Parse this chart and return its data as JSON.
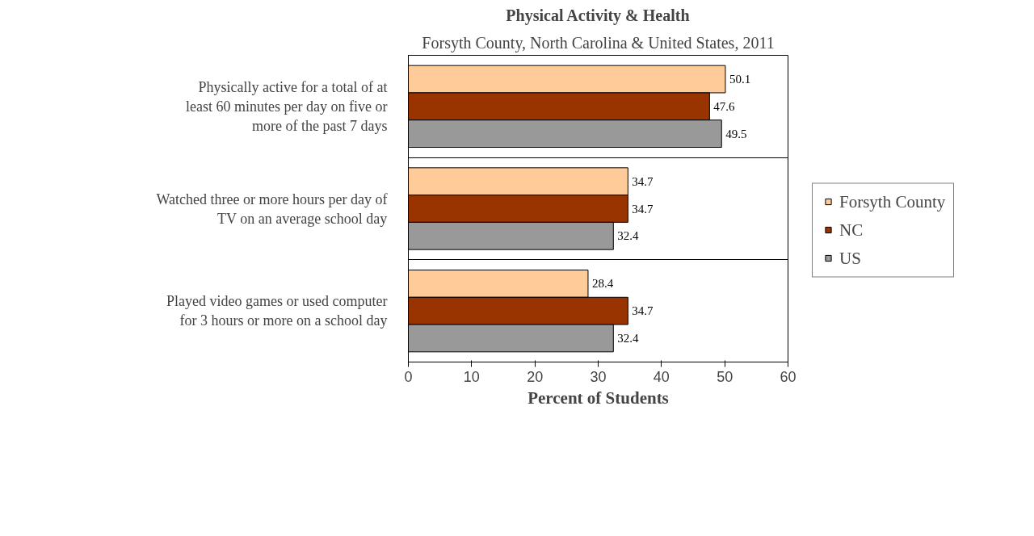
{
  "chart_data": {
    "type": "bar",
    "orientation": "horizontal",
    "title": "Physical Activity & Health",
    "subtitle": "Forsyth County, North Carolina & United States, 2011",
    "xlabel": "Percent of Students",
    "categories": [
      "Physically active for a total of at least 60 minutes per day on five or more of the past 7 days",
      "Watched three or more hours per day of TV on an average school day",
      "Played video games or used computer for 3 hours or more on a school day"
    ],
    "series": [
      {
        "name": "Forsyth County",
        "color": "#ffcc99",
        "values": [
          50.1,
          34.7,
          28.4
        ]
      },
      {
        "name": "NC",
        "color": "#993300",
        "values": [
          47.6,
          34.7,
          34.7
        ]
      },
      {
        "name": "US",
        "color": "#999999",
        "values": [
          49.5,
          32.4,
          32.4
        ]
      }
    ],
    "xlim": [
      0,
      60
    ],
    "xticks": [
      0,
      10,
      20,
      30,
      40,
      50,
      60
    ],
    "grid": "y",
    "legend": "right",
    "data_labels": true
  }
}
